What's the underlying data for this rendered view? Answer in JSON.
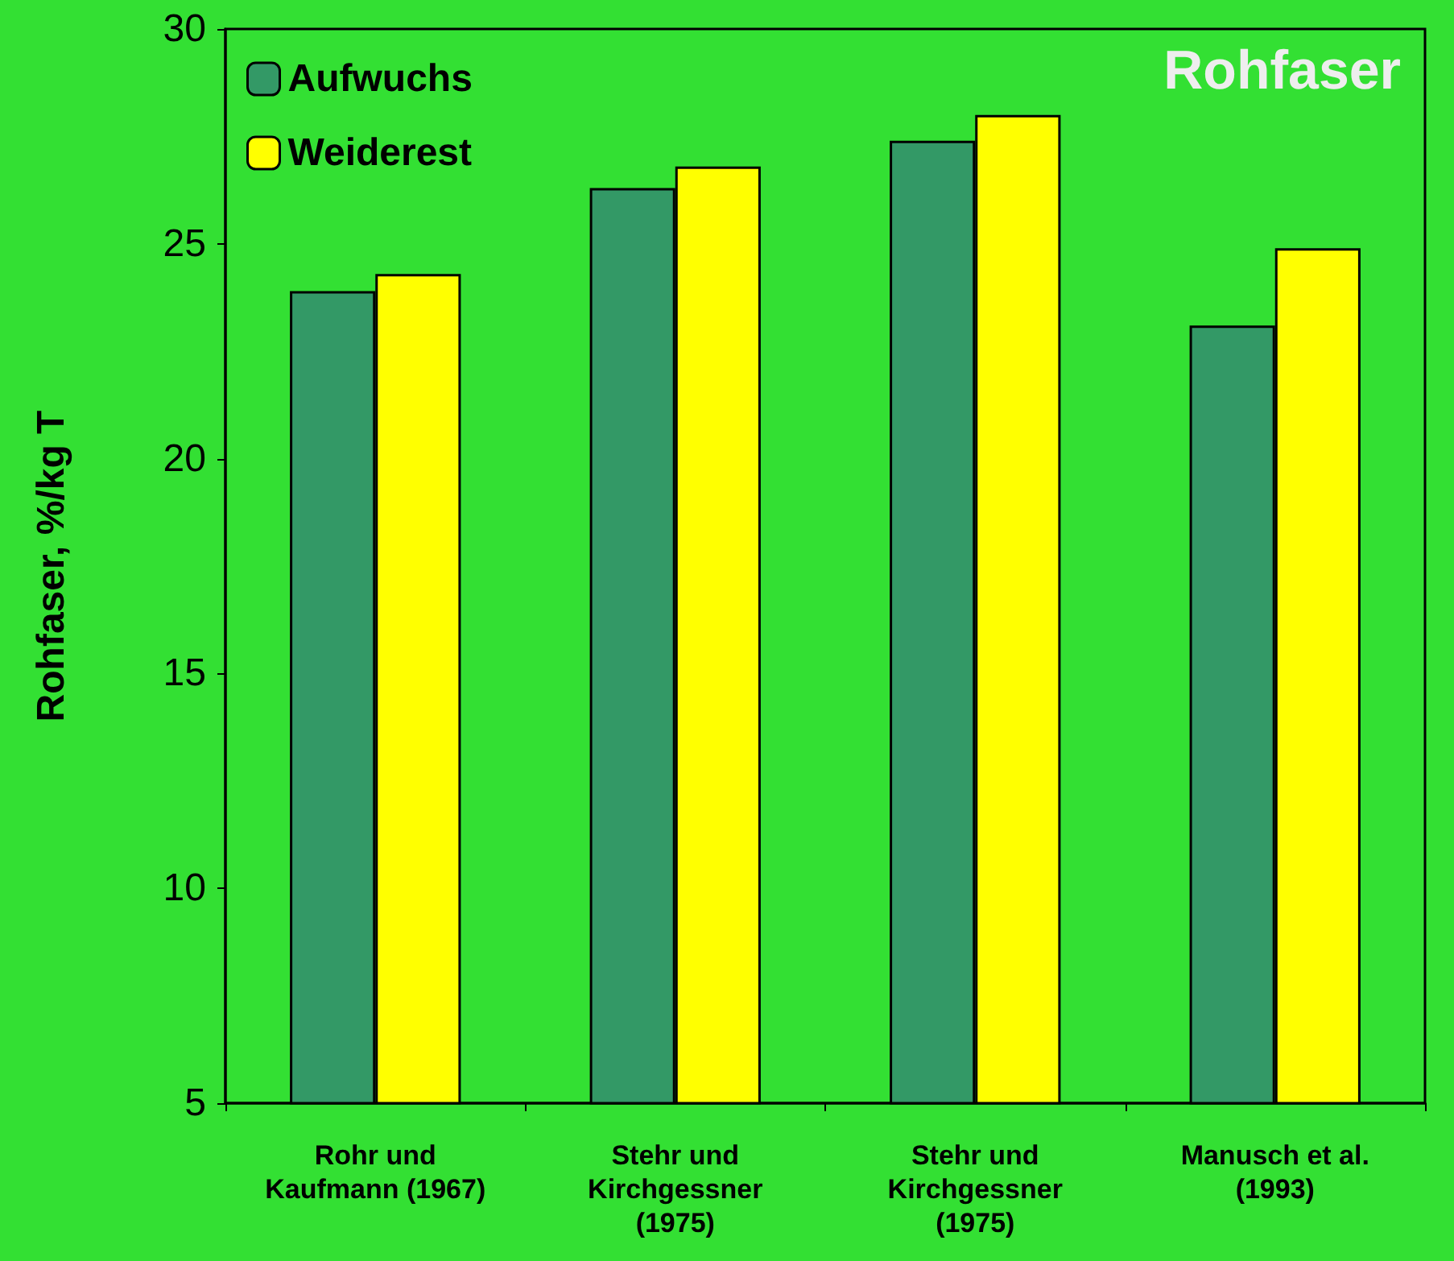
{
  "chart_data": {
    "type": "bar",
    "title": "Rohfaser",
    "ylabel": "Rohfaser, %/kg T",
    "categories": [
      "Rohr und\nKaufmann (1967)",
      "Stehr und\nKirchgessner\n(1975)",
      "Stehr und\nKirchgessner\n(1975)",
      "Manusch et al.\n(1993)"
    ],
    "series": [
      {
        "name": "Aufwuchs",
        "color": "#339966",
        "values": [
          23.9,
          26.3,
          27.4,
          23.1
        ]
      },
      {
        "name": "Weiderest",
        "color": "#ffff00",
        "values": [
          24.3,
          26.8,
          28.0,
          24.9
        ]
      }
    ],
    "ylim": [
      5,
      30
    ],
    "yticks": [
      5,
      10,
      15,
      20,
      25,
      30
    ],
    "grid": false,
    "legend": "top left"
  }
}
